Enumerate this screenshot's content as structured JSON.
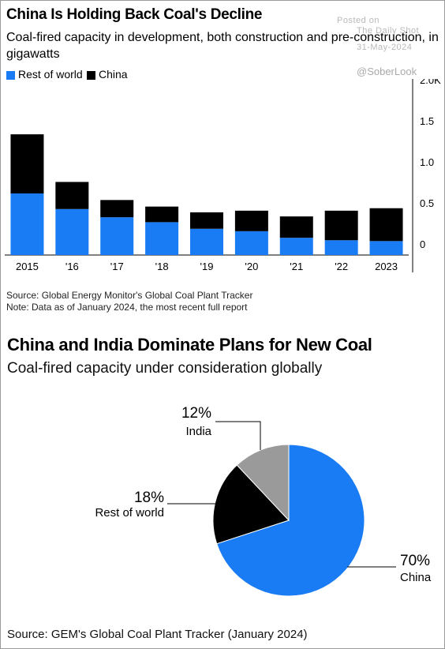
{
  "watermark": {
    "posted_on": "Posted on",
    "site": "The Daily Shot",
    "date": "31-May-2024",
    "handle": "@SoberLook"
  },
  "colors": {
    "rest_of_world": "#1a7cf5",
    "china": "#000000",
    "india": "#9a9a9a"
  },
  "chart1": {
    "title": "China Is Holding Back Coal's Decline",
    "subtitle": "Coal-fired capacity in development, both construction and pre-construction, in gigawatts",
    "legend": {
      "rest_of_world": "Rest of world",
      "china": "China"
    },
    "source": "Source: Global Energy Monitor's Global Coal Plant Tracker",
    "note": "Note: Data as of January 2024, the most recent full report"
  },
  "chart2": {
    "title": "China and India Dominate Plans for New Coal",
    "subtitle": "Coal-fired capacity under consideration globally",
    "source": "Source: GEM's Global Coal Plant Tracker (January 2024)"
  },
  "chart_data": [
    {
      "type": "bar",
      "stacked": true,
      "categories": [
        "2015",
        "'16",
        "'17",
        "'18",
        "'19",
        "'20",
        "'21",
        "'22",
        "2023"
      ],
      "series": [
        {
          "name": "Rest of world",
          "values": [
            0.75,
            0.56,
            0.46,
            0.4,
            0.32,
            0.29,
            0.21,
            0.18,
            0.17
          ]
        },
        {
          "name": "China",
          "values": [
            0.72,
            0.33,
            0.21,
            0.19,
            0.2,
            0.25,
            0.26,
            0.36,
            0.4
          ]
        }
      ],
      "yticks": [
        "0",
        "0.5",
        "1.0",
        "1.5",
        "2.0K"
      ],
      "ylim": [
        0,
        2.0
      ],
      "grid": false,
      "legend_position": "top-left"
    },
    {
      "type": "pie",
      "slices": [
        {
          "label": "China",
          "value": 70,
          "value_label": "70%"
        },
        {
          "label": "Rest of world",
          "value": 18,
          "value_label": "18%"
        },
        {
          "label": "India",
          "value": 12,
          "value_label": "12%"
        }
      ]
    }
  ]
}
